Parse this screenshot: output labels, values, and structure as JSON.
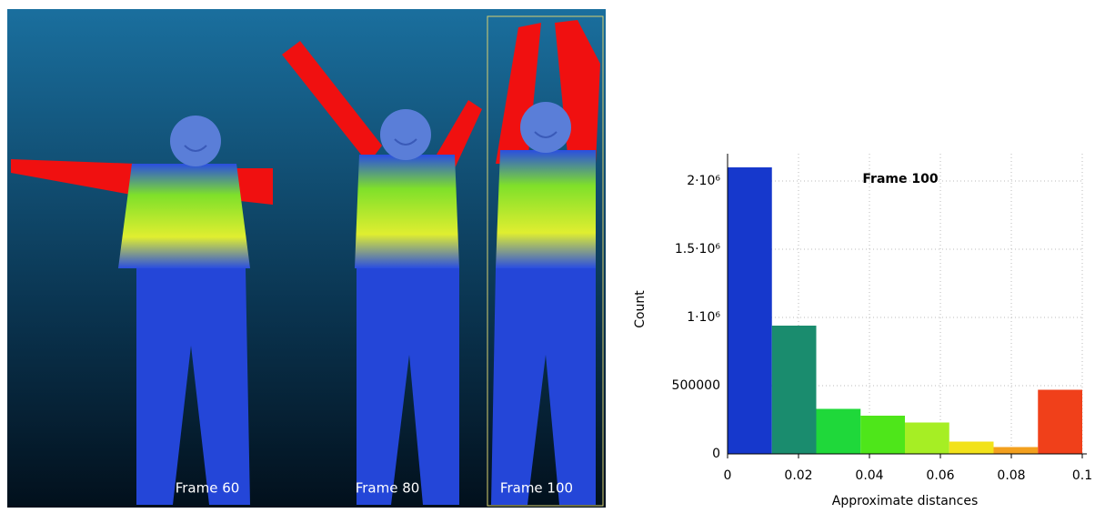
{
  "panels": [
    {
      "label": "Frame 60"
    },
    {
      "label": "Frame 80"
    },
    {
      "label": "Frame 100"
    }
  ],
  "chart_data": {
    "type": "histogram",
    "title": "Frame 100",
    "x_label": "Approximate distances",
    "y_label": "Count",
    "bins": [
      0,
      0.0125,
      0.025,
      0.0375,
      0.05,
      0.0625,
      0.075,
      0.0875,
      0.1
    ],
    "values": [
      2100000,
      940000,
      330000,
      280000,
      230000,
      90000,
      50000,
      470000
    ],
    "colors": [
      "#1638cc",
      "#1a8c6e",
      "#1fd83a",
      "#4ee61a",
      "#a6ee24",
      "#f2e21a",
      "#f3a01e",
      "#f0401a"
    ],
    "xlim": [
      0,
      0.1
    ],
    "xticks": [
      0,
      0.02,
      0.04,
      0.06,
      0.08,
      0.1
    ],
    "ylim": [
      0,
      2200000
    ],
    "yticks": [
      0,
      500000,
      {
        "value": 1000000,
        "label": "1·10⁶"
      },
      {
        "value": 1500000,
        "label": "1.5·10⁶"
      },
      {
        "value": 2000000,
        "label": "2·10⁶"
      }
    ],
    "grid": true
  }
}
